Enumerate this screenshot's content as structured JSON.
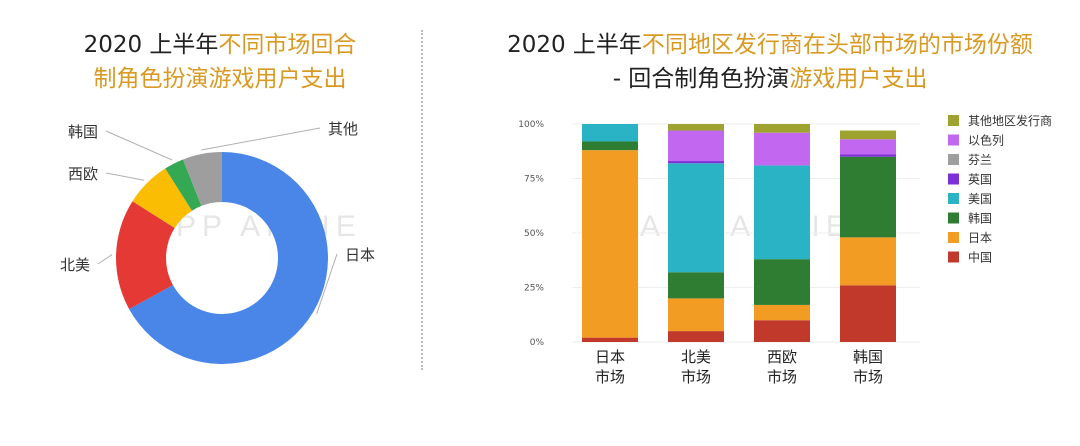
{
  "left_title": {
    "line1_dark": "2020 上半年",
    "line1_accent": "不同市场回合",
    "line2_accent": "制角色扮演游戏用户支出"
  },
  "right_title": {
    "line1_dark": "2020 上半年",
    "line1_accent": "不同地区发行商在头部市场的市场份额",
    "line2_dark": "- 回合制角色扮演",
    "line2_accent": "游戏用户支出"
  },
  "watermark": "APP ANNIE",
  "colors": {
    "accent": "#d99a24",
    "japan_pie": "#4a86e8",
    "north_america_pie": "#e53935",
    "western_europe_pie": "#fbbc04",
    "korea_pie": "#34a853",
    "other_pie": "#9e9e9e"
  },
  "chart_data": [
    {
      "type": "pie",
      "donut": true,
      "slices": [
        {
          "label": "日本",
          "value": 67,
          "color": "#4a86e8"
        },
        {
          "label": "北美",
          "value": 17,
          "color": "#e53935"
        },
        {
          "label": "西欧",
          "value": 7,
          "color": "#fbbc04"
        },
        {
          "label": "韩国",
          "value": 3,
          "color": "#34a853"
        },
        {
          "label": "其他",
          "value": 6,
          "color": "#9e9e9e"
        }
      ]
    },
    {
      "type": "bar",
      "stacked": true,
      "categories": [
        "日本\n市场",
        "北美\n市场",
        "西欧\n市场",
        "韩国\n市场"
      ],
      "ylim": [
        0,
        100
      ],
      "yticks": [
        "0%",
        "25%",
        "50%",
        "75%",
        "100%"
      ],
      "legend_position": "right",
      "series": [
        {
          "name": "中国",
          "color": "#c0392b",
          "values": [
            2,
            5,
            10,
            26
          ]
        },
        {
          "name": "日本",
          "color": "#f39c24",
          "values": [
            86,
            15,
            7,
            22
          ]
        },
        {
          "name": "韩国",
          "color": "#2e7d32",
          "values": [
            4,
            12,
            21,
            37
          ]
        },
        {
          "name": "美国",
          "color": "#2ab3c4",
          "values": [
            8,
            50,
            43,
            0
          ]
        },
        {
          "name": "英国",
          "color": "#7b2fd6",
          "values": [
            0,
            1,
            0,
            1
          ]
        },
        {
          "name": "芬兰",
          "color": "#9e9e9e",
          "values": [
            0,
            0,
            0,
            0
          ]
        },
        {
          "name": "以色列",
          "color": "#c267f0",
          "values": [
            0,
            14,
            15,
            7
          ]
        },
        {
          "name": "其他地区发行商",
          "color": "#9ea22e",
          "values": [
            0,
            3,
            4,
            4
          ]
        }
      ],
      "legend_order": [
        "其他地区发行商",
        "以色列",
        "芬兰",
        "英国",
        "美国",
        "韩国",
        "日本",
        "中国"
      ]
    }
  ]
}
